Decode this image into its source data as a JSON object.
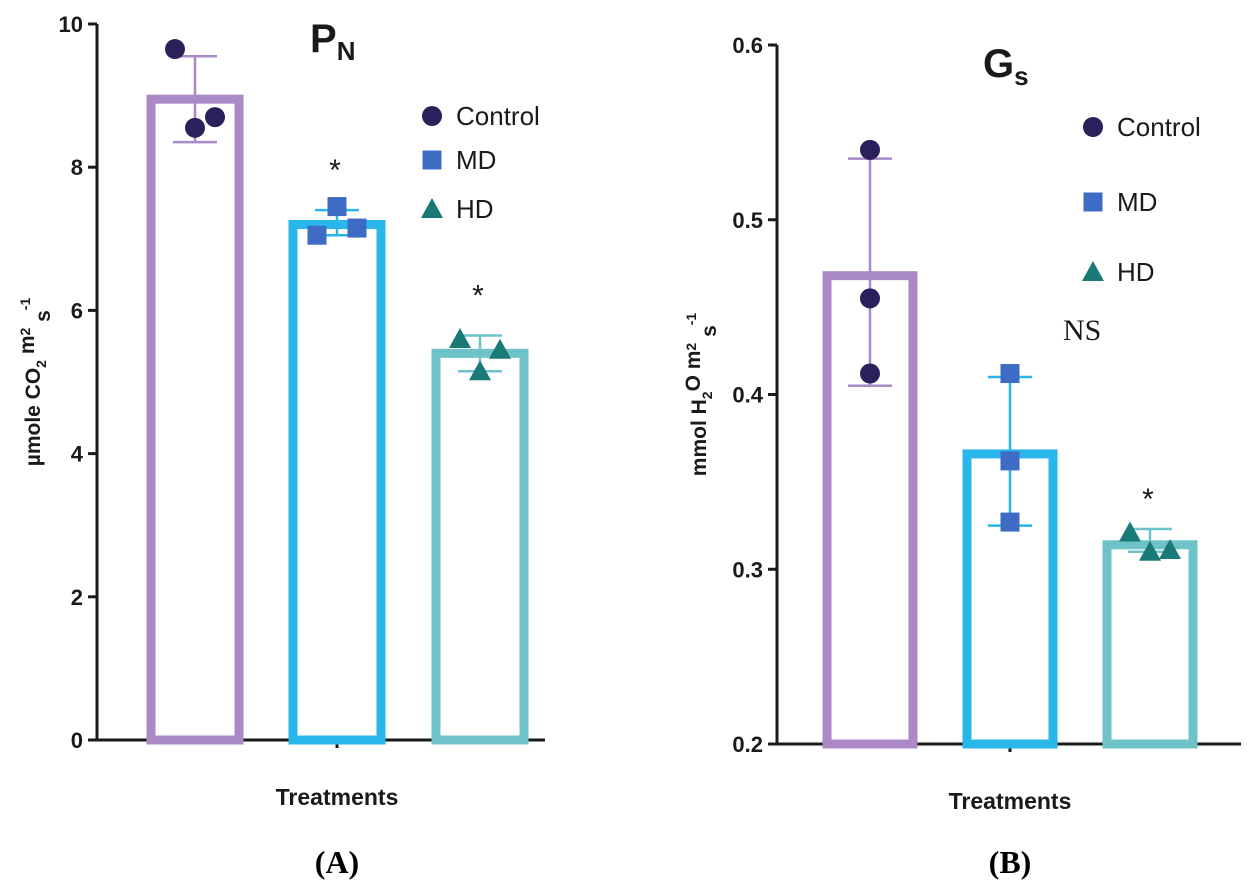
{
  "chart_data": [
    {
      "type": "bar",
      "panel_label": "(A)",
      "title_main": "P",
      "title_sub": "N",
      "xlabel": "Treatments",
      "ylabel_parts": [
        "µmole CO",
        "2",
        " m",
        "2",
        " s",
        "-1"
      ],
      "ylim": [
        0,
        10
      ],
      "yticks": [
        0,
        2,
        4,
        6,
        8,
        10
      ],
      "tick_labels": [
        "0",
        "2",
        "4",
        "6",
        "8",
        "10"
      ],
      "categories": [
        "Control",
        "MD",
        "HD"
      ],
      "values": [
        8.95,
        7.2,
        5.4
      ],
      "error_low": [
        8.35,
        7.05,
        5.15
      ],
      "error_high": [
        9.55,
        7.4,
        5.65
      ],
      "points": [
        [
          9.65,
          8.55,
          8.7
        ],
        [
          7.05,
          7.45,
          7.15
        ],
        [
          5.6,
          5.15,
          5.45
        ]
      ],
      "annotations": [
        "",
        "*",
        "*"
      ],
      "legend": [
        "Control",
        "MD",
        "HD"
      ],
      "colors": [
        "#a98ac6",
        "#29b6ea",
        "#6ec3c8"
      ],
      "marker_colors": [
        "#2b1f5c",
        "#3e6bc4",
        "#1a7a78"
      ]
    },
    {
      "type": "bar",
      "panel_label": "(B)",
      "title_main": "G",
      "title_sub": "s",
      "xlabel": "Treatments",
      "ylabel_parts": [
        "mmol H",
        "2",
        "O m",
        "2",
        " s",
        "-1"
      ],
      "ylim": [
        0.2,
        0.6
      ],
      "yticks": [
        0.2,
        0.3,
        0.4,
        0.5,
        0.6
      ],
      "tick_labels": [
        "0.2",
        "0.3",
        "0.4",
        "0.5",
        "0.6"
      ],
      "categories": [
        "Control",
        "MD",
        "HD"
      ],
      "values": [
        0.468,
        0.366,
        0.314
      ],
      "error_low": [
        0.405,
        0.325,
        0.31
      ],
      "error_high": [
        0.535,
        0.41,
        0.323
      ],
      "points": [
        [
          0.54,
          0.455,
          0.412
        ],
        [
          0.412,
          0.362,
          0.327
        ],
        [
          0.321,
          0.31,
          0.311
        ]
      ],
      "annotations": [
        "",
        "",
        "*"
      ],
      "note": "NS",
      "legend": [
        "Control",
        "MD",
        "HD"
      ],
      "colors": [
        "#a98ac6",
        "#29b6ea",
        "#6ec3c8"
      ],
      "marker_colors": [
        "#2b1f5c",
        "#3e6bc4",
        "#1a7a78"
      ]
    }
  ]
}
